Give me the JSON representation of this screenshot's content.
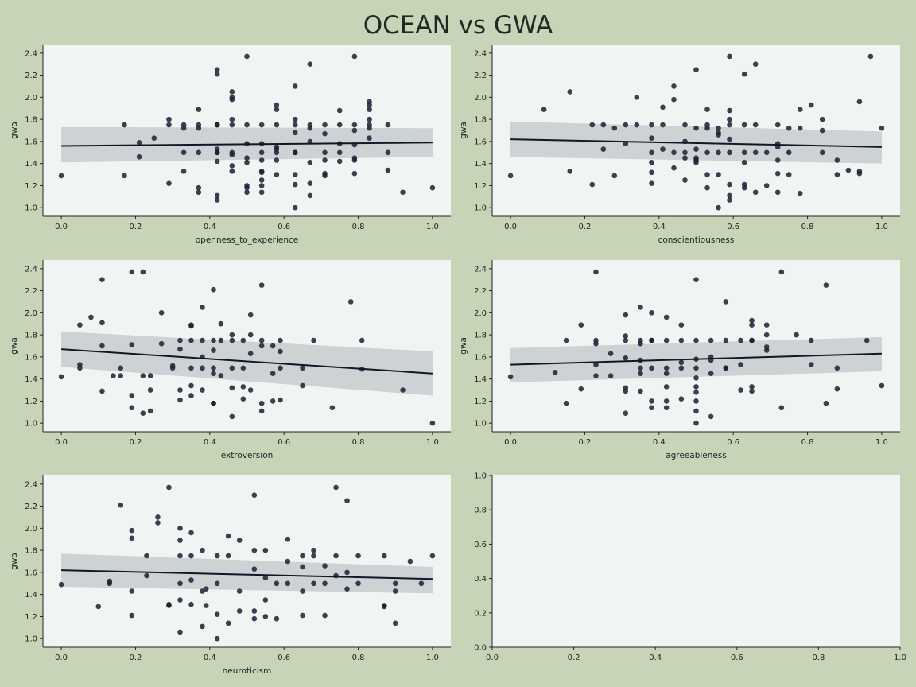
{
  "title": "OCEAN vs GWA",
  "chart_data": [
    {
      "type": "scatter",
      "xlabel": "openness_to_experience",
      "ylabel": "gwa",
      "xlim": [
        0,
        1
      ],
      "ylim": [
        1.0,
        2.4
      ],
      "xticks": [
        "0.0",
        "0.2",
        "0.4",
        "0.6",
        "0.8",
        "1.0"
      ],
      "yticks": [
        "1.0",
        "1.2",
        "1.4",
        "1.6",
        "1.8",
        "2.0",
        "2.2",
        "2.4"
      ],
      "grid": false,
      "regression": {
        "x": [
          0,
          1
        ],
        "y": [
          1.56,
          1.59
        ],
        "ci_lower": [
          1.41,
          1.46
        ],
        "ci_upper": [
          1.73,
          1.72
        ]
      },
      "x": [
        0.0,
        0.17,
        0.17,
        0.21,
        0.21,
        0.25,
        0.29,
        0.29,
        0.29,
        0.33,
        0.33,
        0.33,
        0.33,
        0.37,
        0.37,
        0.37,
        0.37,
        0.37,
        0.37,
        0.42,
        0.42,
        0.42,
        0.42,
        0.42,
        0.42,
        0.42,
        0.42,
        0.42,
        0.42,
        0.46,
        0.46,
        0.46,
        0.46,
        0.46,
        0.46,
        0.46,
        0.46,
        0.46,
        0.5,
        0.5,
        0.5,
        0.5,
        0.5,
        0.5,
        0.5,
        0.5,
        0.54,
        0.54,
        0.54,
        0.54,
        0.54,
        0.54,
        0.54,
        0.54,
        0.54,
        0.58,
        0.58,
        0.58,
        0.58,
        0.58,
        0.58,
        0.58,
        0.58,
        0.63,
        0.63,
        0.63,
        0.63,
        0.63,
        0.63,
        0.63,
        0.63,
        0.63,
        0.67,
        0.67,
        0.67,
        0.67,
        0.67,
        0.67,
        0.67,
        0.71,
        0.71,
        0.71,
        0.71,
        0.71,
        0.71,
        0.75,
        0.75,
        0.75,
        0.75,
        0.75,
        0.79,
        0.79,
        0.79,
        0.79,
        0.79,
        0.79,
        0.79,
        0.83,
        0.83,
        0.83,
        0.83,
        0.83,
        0.83,
        0.83,
        0.88,
        0.88,
        0.88,
        0.92,
        1.0
      ],
      "y": [
        1.29,
        1.75,
        1.29,
        1.46,
        1.59,
        1.63,
        1.8,
        1.75,
        1.22,
        1.75,
        1.5,
        1.33,
        1.72,
        1.89,
        1.75,
        1.5,
        1.18,
        1.14,
        1.72,
        2.25,
        2.21,
        1.75,
        1.75,
        1.53,
        1.5,
        1.42,
        1.11,
        1.07,
        1.5,
        2.05,
        2.0,
        1.98,
        1.8,
        1.75,
        1.5,
        1.48,
        1.38,
        1.33,
        2.37,
        1.75,
        1.58,
        1.45,
        1.41,
        1.2,
        1.18,
        1.14,
        1.75,
        1.58,
        1.5,
        1.43,
        1.33,
        1.32,
        1.25,
        1.2,
        1.14,
        1.93,
        1.89,
        1.75,
        1.55,
        1.53,
        1.5,
        1.43,
        1.3,
        2.1,
        1.8,
        1.75,
        1.68,
        1.5,
        1.5,
        1.3,
        1.21,
        1.0,
        2.3,
        1.75,
        1.72,
        1.6,
        1.41,
        1.22,
        1.11,
        1.75,
        1.67,
        1.5,
        1.43,
        1.31,
        1.29,
        1.88,
        1.75,
        1.58,
        1.5,
        1.42,
        2.37,
        1.75,
        1.7,
        1.57,
        1.45,
        1.43,
        1.31,
        1.96,
        1.93,
        1.89,
        1.8,
        1.75,
        1.72,
        1.63,
        1.75,
        1.5,
        1.34,
        1.14,
        1.18
      ]
    },
    {
      "type": "scatter",
      "xlabel": "conscientiousness",
      "ylabel": "gwa",
      "xlim": [
        0,
        1
      ],
      "ylim": [
        1.0,
        2.4
      ],
      "xticks": [
        "0.0",
        "0.2",
        "0.4",
        "0.6",
        "0.8",
        "1.0"
      ],
      "yticks": [
        "1.0",
        "1.2",
        "1.4",
        "1.6",
        "1.8",
        "2.0",
        "2.2",
        "2.4"
      ],
      "grid": false,
      "regression": {
        "x": [
          0,
          1
        ],
        "y": [
          1.62,
          1.55
        ],
        "ci_lower": [
          1.46,
          1.4
        ],
        "ci_upper": [
          1.78,
          1.69
        ]
      },
      "x": [
        0.0,
        0.09,
        0.16,
        0.16,
        0.22,
        0.22,
        0.25,
        0.25,
        0.28,
        0.28,
        0.31,
        0.31,
        0.34,
        0.34,
        0.38,
        0.38,
        0.38,
        0.38,
        0.38,
        0.38,
        0.41,
        0.41,
        0.41,
        0.44,
        0.44,
        0.44,
        0.44,
        0.47,
        0.47,
        0.47,
        0.47,
        0.47,
        0.5,
        0.5,
        0.5,
        0.5,
        0.5,
        0.5,
        0.53,
        0.53,
        0.53,
        0.53,
        0.53,
        0.53,
        0.56,
        0.56,
        0.56,
        0.56,
        0.56,
        0.56,
        0.59,
        0.59,
        0.59,
        0.59,
        0.59,
        0.59,
        0.59,
        0.59,
        0.59,
        0.63,
        0.63,
        0.63,
        0.63,
        0.63,
        0.63,
        0.66,
        0.66,
        0.66,
        0.66,
        0.69,
        0.69,
        0.72,
        0.72,
        0.72,
        0.72,
        0.72,
        0.72,
        0.75,
        0.75,
        0.75,
        0.78,
        0.78,
        0.78,
        0.81,
        0.84,
        0.84,
        0.84,
        0.88,
        0.88,
        0.91,
        0.94,
        0.94,
        0.94,
        0.97,
        1.0
      ],
      "y": [
        1.29,
        1.89,
        2.05,
        1.33,
        1.75,
        1.21,
        1.75,
        1.53,
        1.72,
        1.29,
        1.75,
        1.58,
        2.0,
        1.75,
        1.75,
        1.63,
        1.5,
        1.41,
        1.32,
        1.22,
        1.91,
        1.75,
        1.53,
        2.1,
        1.98,
        1.5,
        1.36,
        1.75,
        1.6,
        1.5,
        1.45,
        1.25,
        2.25,
        1.72,
        1.53,
        1.45,
        1.43,
        1.41,
        1.89,
        1.75,
        1.72,
        1.5,
        1.3,
        1.18,
        1.72,
        1.68,
        1.66,
        1.5,
        1.3,
        1.0,
        2.37,
        1.88,
        1.8,
        1.75,
        1.62,
        1.5,
        1.21,
        1.11,
        1.07,
        2.21,
        1.75,
        1.5,
        1.41,
        1.21,
        1.18,
        2.3,
        1.75,
        1.5,
        1.14,
        1.5,
        1.2,
        1.75,
        1.58,
        1.55,
        1.43,
        1.31,
        1.14,
        1.72,
        1.5,
        1.3,
        1.89,
        1.72,
        1.13,
        1.93,
        1.8,
        1.7,
        1.5,
        1.43,
        1.3,
        1.34,
        1.96,
        1.33,
        1.31,
        2.37,
        1.72
      ]
    },
    {
      "type": "scatter",
      "xlabel": "extroversion",
      "ylabel": "gwa",
      "xlim": [
        0,
        1
      ],
      "ylim": [
        1.0,
        2.4
      ],
      "xticks": [
        "0.0",
        "0.2",
        "0.4",
        "0.6",
        "0.8",
        "1.0"
      ],
      "yticks": [
        "1.0",
        "1.2",
        "1.4",
        "1.6",
        "1.8",
        "2.0",
        "2.2",
        "2.4"
      ],
      "grid": false,
      "regression": {
        "x": [
          0,
          1
        ],
        "y": [
          1.67,
          1.45
        ],
        "ci_lower": [
          1.51,
          1.25
        ],
        "ci_upper": [
          1.83,
          1.65
        ]
      },
      "x": [
        0.0,
        0.05,
        0.05,
        0.05,
        0.08,
        0.11,
        0.11,
        0.11,
        0.11,
        0.14,
        0.16,
        0.16,
        0.19,
        0.19,
        0.19,
        0.19,
        0.22,
        0.22,
        0.22,
        0.24,
        0.24,
        0.24,
        0.27,
        0.27,
        0.3,
        0.3,
        0.32,
        0.32,
        0.32,
        0.32,
        0.35,
        0.35,
        0.35,
        0.35,
        0.35,
        0.35,
        0.38,
        0.38,
        0.38,
        0.38,
        0.38,
        0.41,
        0.41,
        0.41,
        0.41,
        0.41,
        0.41,
        0.41,
        0.43,
        0.43,
        0.43,
        0.46,
        0.46,
        0.46,
        0.46,
        0.46,
        0.49,
        0.49,
        0.49,
        0.49,
        0.51,
        0.51,
        0.51,
        0.51,
        0.54,
        0.54,
        0.54,
        0.54,
        0.54,
        0.57,
        0.57,
        0.57,
        0.59,
        0.59,
        0.59,
        0.59,
        0.65,
        0.65,
        0.68,
        0.73,
        0.78,
        0.81,
        0.81,
        0.92,
        1.0
      ],
      "y": [
        1.42,
        1.89,
        1.53,
        1.5,
        1.96,
        2.3,
        1.91,
        1.7,
        1.29,
        1.43,
        1.5,
        1.43,
        2.37,
        1.71,
        1.25,
        1.14,
        2.37,
        1.43,
        1.09,
        1.43,
        1.3,
        1.11,
        2.0,
        1.72,
        1.52,
        1.5,
        1.75,
        1.67,
        1.3,
        1.21,
        1.89,
        1.88,
        1.75,
        1.5,
        1.34,
        1.25,
        2.05,
        1.75,
        1.6,
        1.5,
        1.3,
        2.21,
        1.75,
        1.66,
        1.5,
        1.45,
        1.18,
        1.18,
        1.9,
        1.75,
        1.43,
        1.8,
        1.75,
        1.5,
        1.32,
        1.06,
        1.75,
        1.5,
        1.33,
        1.22,
        1.98,
        1.8,
        1.63,
        1.3,
        2.25,
        1.75,
        1.7,
        1.18,
        1.11,
        1.7,
        1.45,
        1.2,
        1.75,
        1.65,
        1.5,
        1.21,
        1.5,
        1.34,
        1.75,
        1.14,
        2.1,
        1.75,
        1.49,
        1.3,
        1.0
      ]
    },
    {
      "type": "scatter",
      "xlabel": "agreeableness",
      "ylabel": "gwa",
      "xlim": [
        0,
        1
      ],
      "ylim": [
        1.0,
        2.4
      ],
      "xticks": [
        "0.0",
        "0.2",
        "0.4",
        "0.6",
        "0.8",
        "1.0"
      ],
      "yticks": [
        "1.0",
        "1.2",
        "1.4",
        "1.6",
        "1.8",
        "2.0",
        "2.2",
        "2.4"
      ],
      "grid": false,
      "regression": {
        "x": [
          0,
          1
        ],
        "y": [
          1.53,
          1.63
        ],
        "ci_lower": [
          1.37,
          1.47
        ],
        "ci_upper": [
          1.68,
          1.78
        ]
      },
      "x": [
        0.0,
        0.12,
        0.15,
        0.15,
        0.19,
        0.19,
        0.23,
        0.23,
        0.23,
        0.23,
        0.23,
        0.27,
        0.27,
        0.31,
        0.31,
        0.31,
        0.31,
        0.31,
        0.31,
        0.31,
        0.35,
        0.35,
        0.35,
        0.35,
        0.35,
        0.35,
        0.35,
        0.38,
        0.38,
        0.38,
        0.38,
        0.38,
        0.38,
        0.42,
        0.42,
        0.42,
        0.42,
        0.42,
        0.42,
        0.42,
        0.46,
        0.46,
        0.46,
        0.46,
        0.46,
        0.5,
        0.5,
        0.5,
        0.5,
        0.5,
        0.5,
        0.5,
        0.5,
        0.5,
        0.5,
        0.54,
        0.54,
        0.54,
        0.54,
        0.54,
        0.58,
        0.58,
        0.58,
        0.58,
        0.62,
        0.62,
        0.62,
        0.65,
        0.65,
        0.65,
        0.65,
        0.65,
        0.65,
        0.69,
        0.69,
        0.69,
        0.69,
        0.73,
        0.73,
        0.77,
        0.81,
        0.81,
        0.85,
        0.85,
        0.88,
        0.88,
        0.96,
        1.0
      ],
      "y": [
        1.42,
        1.46,
        1.75,
        1.18,
        1.89,
        1.31,
        2.37,
        1.75,
        1.72,
        1.53,
        1.43,
        1.63,
        1.43,
        1.98,
        1.79,
        1.75,
        1.59,
        1.32,
        1.29,
        1.09,
        2.05,
        1.75,
        1.72,
        1.57,
        1.5,
        1.45,
        1.29,
        2.0,
        1.75,
        1.75,
        1.5,
        1.2,
        1.14,
        1.96,
        1.75,
        1.5,
        1.45,
        1.33,
        1.2,
        1.14,
        1.89,
        1.75,
        1.55,
        1.5,
        1.22,
        2.3,
        1.75,
        1.58,
        1.5,
        1.41,
        1.33,
        1.28,
        1.2,
        1.11,
        1.0,
        1.75,
        1.6,
        1.57,
        1.45,
        1.06,
        2.1,
        1.75,
        1.5,
        1.5,
        1.75,
        1.53,
        1.3,
        1.93,
        1.89,
        1.75,
        1.75,
        1.33,
        1.29,
        1.89,
        1.8,
        1.69,
        1.66,
        2.37,
        1.14,
        1.8,
        1.75,
        1.53,
        2.25,
        1.18,
        1.5,
        1.31,
        1.75,
        1.34
      ]
    },
    {
      "type": "scatter",
      "xlabel": "neuroticism",
      "ylabel": "gwa",
      "xlim": [
        0,
        1
      ],
      "ylim": [
        1.0,
        2.4
      ],
      "xticks": [
        "0.0",
        "0.2",
        "0.4",
        "0.6",
        "0.8",
        "1.0"
      ],
      "yticks": [
        "1.0",
        "1.2",
        "1.4",
        "1.6",
        "1.8",
        "2.0",
        "2.2",
        "2.4"
      ],
      "grid": false,
      "regression": {
        "x": [
          0,
          1
        ],
        "y": [
          1.62,
          1.54
        ],
        "ci_lower": [
          1.47,
          1.41
        ],
        "ci_upper": [
          1.77,
          1.65
        ]
      },
      "x": [
        0.0,
        0.1,
        0.13,
        0.13,
        0.16,
        0.19,
        0.19,
        0.19,
        0.19,
        0.23,
        0.23,
        0.26,
        0.26,
        0.29,
        0.29,
        0.29,
        0.32,
        0.32,
        0.32,
        0.32,
        0.32,
        0.32,
        0.35,
        0.35,
        0.35,
        0.35,
        0.38,
        0.38,
        0.38,
        0.39,
        0.39,
        0.42,
        0.42,
        0.42,
        0.42,
        0.45,
        0.45,
        0.45,
        0.48,
        0.48,
        0.48,
        0.52,
        0.52,
        0.52,
        0.52,
        0.52,
        0.55,
        0.55,
        0.55,
        0.55,
        0.58,
        0.58,
        0.61,
        0.61,
        0.61,
        0.65,
        0.65,
        0.65,
        0.65,
        0.68,
        0.68,
        0.68,
        0.71,
        0.71,
        0.71,
        0.74,
        0.74,
        0.74,
        0.77,
        0.77,
        0.77,
        0.8,
        0.8,
        0.87,
        0.87,
        0.87,
        0.9,
        0.9,
        0.9,
        0.94,
        0.97,
        1.0
      ],
      "y": [
        1.49,
        1.29,
        1.52,
        1.5,
        2.21,
        1.98,
        1.91,
        1.43,
        1.21,
        1.75,
        1.57,
        2.1,
        2.05,
        2.37,
        1.31,
        1.3,
        2.0,
        1.89,
        1.75,
        1.5,
        1.35,
        1.06,
        1.96,
        1.75,
        1.53,
        1.31,
        1.8,
        1.43,
        1.11,
        1.45,
        1.3,
        1.75,
        1.5,
        1.22,
        1.0,
        1.93,
        1.75,
        1.14,
        1.89,
        1.43,
        1.25,
        2.3,
        1.8,
        1.63,
        1.25,
        1.18,
        1.8,
        1.55,
        1.35,
        1.2,
        1.5,
        1.18,
        1.9,
        1.7,
        1.5,
        1.75,
        1.65,
        1.43,
        1.21,
        1.8,
        1.75,
        1.5,
        1.66,
        1.5,
        1.21,
        2.37,
        1.75,
        1.57,
        2.25,
        1.6,
        1.45,
        1.75,
        1.5,
        1.75,
        1.3,
        1.29,
        1.5,
        1.43,
        1.14,
        1.7,
        1.5,
        1.75
      ]
    },
    {
      "type": "scatter",
      "xlabel": "",
      "ylabel": "",
      "xlim": [
        0,
        1
      ],
      "ylim": [
        0,
        1
      ],
      "xticks": [
        "0.0",
        "0.2",
        "0.4",
        "0.6",
        "0.8",
        "1.0"
      ],
      "yticks": [
        "0.0",
        "0.2",
        "0.4",
        "0.6",
        "0.8",
        "1.0"
      ],
      "grid": false,
      "x": [],
      "y": []
    }
  ]
}
